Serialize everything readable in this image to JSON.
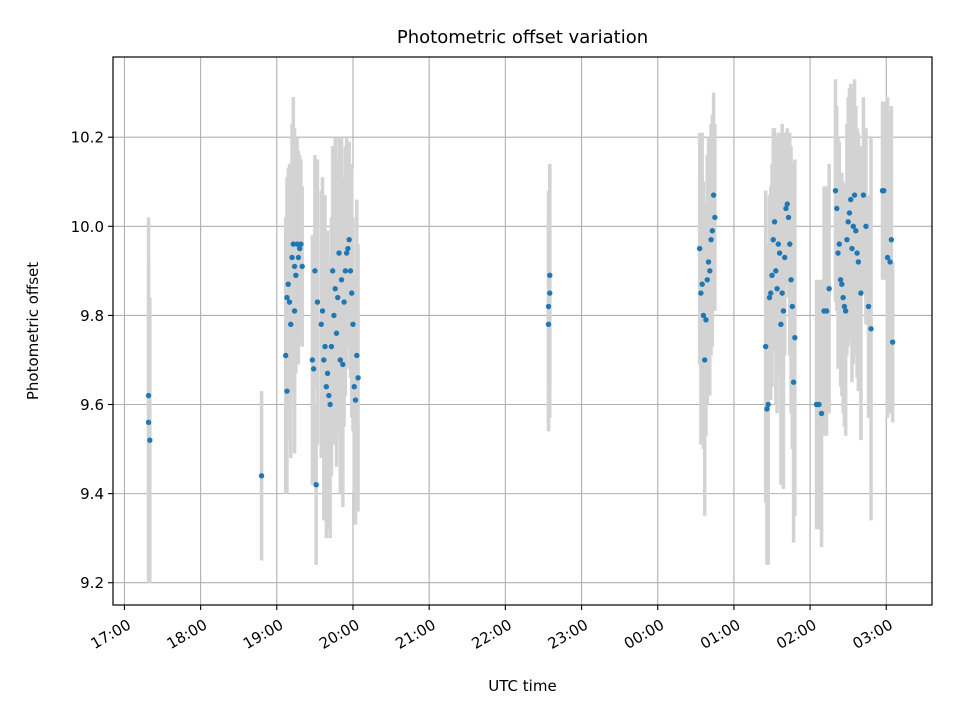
{
  "chart_data": {
    "type": "scatter",
    "title": "Photometric offset variation",
    "xlabel": "UTC time",
    "ylabel": "Photometric offset",
    "x_unit": "UTC datetime",
    "xlim": [
      "2000-01-01T16:51",
      "2000-01-02T03:36"
    ],
    "ylim": [
      9.15,
      10.38
    ],
    "yticks": [
      9.2,
      9.4,
      9.6,
      9.8,
      10.0,
      10.2
    ],
    "ytick_labels": [
      "9.2",
      "9.4",
      "9.6",
      "9.8",
      "10.0",
      "10.2"
    ],
    "xticks": [
      "2000-01-01T17:00",
      "2000-01-01T18:00",
      "2000-01-01T19:00",
      "2000-01-01T20:00",
      "2000-01-01T21:00",
      "2000-01-01T22:00",
      "2000-01-01T23:00",
      "2000-01-02T00:00",
      "2000-01-02T01:00",
      "2000-01-02T02:00",
      "2000-01-02T03:00"
    ],
    "xtick_labels": [
      "17:00",
      "18:00",
      "19:00",
      "20:00",
      "21:00",
      "22:00",
      "23:00",
      "00:00",
      "01:00",
      "02:00",
      "03:00"
    ],
    "grid": true,
    "colors": {
      "marker": "#1f77b4",
      "errorbar": "#d3d3d3",
      "grid": "#b0b0b0"
    },
    "series": [
      {
        "x": [
          "2000-01-01T17:19",
          "2000-01-01T17:19",
          "2000-01-01T17:20",
          "2000-01-01T18:48",
          "2000-01-01T19:07",
          "2000-01-01T19:08",
          "2000-01-01T19:08",
          "2000-01-01T19:09",
          "2000-01-01T19:10",
          "2000-01-01T19:11",
          "2000-01-01T19:12",
          "2000-01-01T19:13",
          "2000-01-01T19:14",
          "2000-01-01T19:14",
          "2000-01-01T19:15",
          "2000-01-01T19:16",
          "2000-01-01T19:17",
          "2000-01-01T19:18",
          "2000-01-01T19:19",
          "2000-01-01T19:20",
          "2000-01-01T19:28",
          "2000-01-01T19:29",
          "2000-01-01T19:30",
          "2000-01-01T19:31",
          "2000-01-01T19:32",
          "2000-01-01T19:35",
          "2000-01-01T19:36",
          "2000-01-01T19:37",
          "2000-01-01T19:38",
          "2000-01-01T19:39",
          "2000-01-01T19:40",
          "2000-01-01T19:41",
          "2000-01-01T19:42",
          "2000-01-01T19:43",
          "2000-01-01T19:44",
          "2000-01-01T19:45",
          "2000-01-01T19:46",
          "2000-01-01T19:47",
          "2000-01-01T19:48",
          "2000-01-01T19:49",
          "2000-01-01T19:50",
          "2000-01-01T19:51",
          "2000-01-01T19:52",
          "2000-01-01T19:53",
          "2000-01-01T19:54",
          "2000-01-01T19:55",
          "2000-01-01T19:56",
          "2000-01-01T19:57",
          "2000-01-01T19:58",
          "2000-01-01T19:59",
          "2000-01-01T20:00",
          "2000-01-01T20:01",
          "2000-01-01T20:02",
          "2000-01-01T20:03",
          "2000-01-01T20:04",
          "2000-01-01T22:34",
          "2000-01-01T22:34",
          "2000-01-01T22:35",
          "2000-01-01T22:35",
          "2000-01-02T00:33",
          "2000-01-02T00:34",
          "2000-01-02T00:35",
          "2000-01-02T00:36",
          "2000-01-02T00:37",
          "2000-01-02T00:38",
          "2000-01-02T00:39",
          "2000-01-02T00:40",
          "2000-01-02T00:41",
          "2000-01-02T00:42",
          "2000-01-02T00:43",
          "2000-01-02T00:44",
          "2000-01-02T00:45",
          "2000-01-02T01:25",
          "2000-01-02T01:26",
          "2000-01-02T01:27",
          "2000-01-02T01:28",
          "2000-01-02T01:29",
          "2000-01-02T01:30",
          "2000-01-02T01:31",
          "2000-01-02T01:32",
          "2000-01-02T01:33",
          "2000-01-02T01:34",
          "2000-01-02T01:35",
          "2000-01-02T01:36",
          "2000-01-02T01:37",
          "2000-01-02T01:38",
          "2000-01-02T01:39",
          "2000-01-02T01:40",
          "2000-01-02T01:41",
          "2000-01-02T01:42",
          "2000-01-02T01:43",
          "2000-01-02T01:44",
          "2000-01-02T01:45",
          "2000-01-02T01:46",
          "2000-01-02T01:47",
          "2000-01-02T01:48",
          "2000-01-02T02:05",
          "2000-01-02T02:07",
          "2000-01-02T02:09",
          "2000-01-02T02:11",
          "2000-01-02T02:13",
          "2000-01-02T02:15",
          "2000-01-02T02:20",
          "2000-01-02T02:21",
          "2000-01-02T02:22",
          "2000-01-02T02:23",
          "2000-01-02T02:24",
          "2000-01-02T02:25",
          "2000-01-02T02:26",
          "2000-01-02T02:27",
          "2000-01-02T02:28",
          "2000-01-02T02:29",
          "2000-01-02T02:30",
          "2000-01-02T02:31",
          "2000-01-02T02:32",
          "2000-01-02T02:33",
          "2000-01-02T02:34",
          "2000-01-02T02:35",
          "2000-01-02T02:36",
          "2000-01-02T02:37",
          "2000-01-02T02:38",
          "2000-01-02T02:40",
          "2000-01-02T02:42",
          "2000-01-02T02:44",
          "2000-01-02T02:46",
          "2000-01-02T02:48",
          "2000-01-02T02:57",
          "2000-01-02T02:58",
          "2000-01-02T03:01",
          "2000-01-02T03:03",
          "2000-01-02T03:04",
          "2000-01-02T03:05"
        ],
        "y": [
          9.62,
          9.56,
          9.52,
          9.44,
          9.71,
          9.63,
          9.84,
          9.87,
          9.83,
          9.78,
          9.93,
          9.96,
          9.91,
          9.81,
          9.89,
          9.96,
          9.93,
          9.95,
          9.96,
          9.91,
          9.7,
          9.68,
          9.9,
          9.42,
          9.83,
          9.78,
          9.81,
          9.7,
          9.73,
          9.64,
          9.67,
          9.62,
          9.6,
          9.73,
          9.9,
          9.8,
          9.86,
          9.76,
          9.84,
          9.94,
          9.7,
          9.88,
          9.69,
          9.83,
          9.9,
          9.94,
          9.95,
          9.97,
          9.9,
          9.85,
          9.78,
          9.64,
          9.61,
          9.71,
          9.66,
          9.78,
          9.82,
          9.85,
          9.89,
          9.95,
          9.85,
          9.87,
          9.8,
          9.7,
          9.79,
          9.88,
          9.92,
          9.9,
          9.97,
          9.99,
          10.07,
          10.02,
          9.73,
          9.59,
          9.6,
          9.84,
          9.85,
          9.89,
          9.97,
          10.01,
          9.9,
          9.86,
          9.96,
          9.94,
          9.78,
          9.85,
          9.81,
          9.93,
          10.04,
          10.05,
          10.02,
          9.96,
          9.88,
          9.82,
          9.65,
          9.75,
          9.6,
          9.6,
          9.58,
          9.81,
          9.81,
          9.86,
          10.08,
          10.04,
          9.94,
          9.96,
          9.88,
          9.87,
          9.84,
          9.82,
          9.81,
          9.97,
          10.01,
          10.03,
          10.06,
          9.95,
          10.0,
          10.07,
          9.99,
          9.94,
          9.92,
          9.85,
          10.07,
          10.0,
          9.82,
          9.77,
          10.08,
          10.08,
          9.93,
          9.92,
          9.97,
          9.74
        ],
        "err": [
          0.4,
          0.36,
          0.32,
          0.19,
          0.31,
          0.23,
          0.27,
          0.26,
          0.31,
          0.3,
          0.3,
          0.33,
          0.31,
          0.32,
          0.22,
          0.24,
          0.24,
          0.21,
          0.19,
          0.18,
          0.28,
          0.26,
          0.26,
          0.18,
          0.32,
          0.3,
          0.3,
          0.36,
          0.34,
          0.34,
          0.32,
          0.3,
          0.3,
          0.29,
          0.28,
          0.29,
          0.34,
          0.3,
          0.31,
          0.26,
          0.3,
          0.32,
          0.32,
          0.28,
          0.28,
          0.26,
          0.22,
          0.22,
          0.24,
          0.28,
          0.24,
          0.24,
          0.28,
          0.35,
          0.3,
          0.24,
          0.26,
          0.28,
          0.25,
          0.26,
          0.34,
          0.34,
          0.3,
          0.35,
          0.26,
          0.28,
          0.28,
          0.28,
          0.26,
          0.26,
          0.23,
          0.21,
          0.35,
          0.35,
          0.36,
          0.23,
          0.24,
          0.25,
          0.25,
          0.21,
          0.3,
          0.28,
          0.25,
          0.27,
          0.36,
          0.38,
          0.4,
          0.22,
          0.17,
          0.17,
          0.18,
          0.25,
          0.3,
          0.32,
          0.36,
          0.4,
          0.28,
          0.28,
          0.3,
          0.28,
          0.28,
          0.28,
          0.25,
          0.23,
          0.26,
          0.23,
          0.24,
          0.25,
          0.26,
          0.27,
          0.28,
          0.26,
          0.28,
          0.28,
          0.26,
          0.3,
          0.31,
          0.26,
          0.28,
          0.28,
          0.29,
          0.33,
          0.22,
          0.22,
          0.25,
          0.43,
          0.2,
          0.2,
          0.36,
          0.34,
          0.3,
          0.18
        ]
      }
    ]
  }
}
